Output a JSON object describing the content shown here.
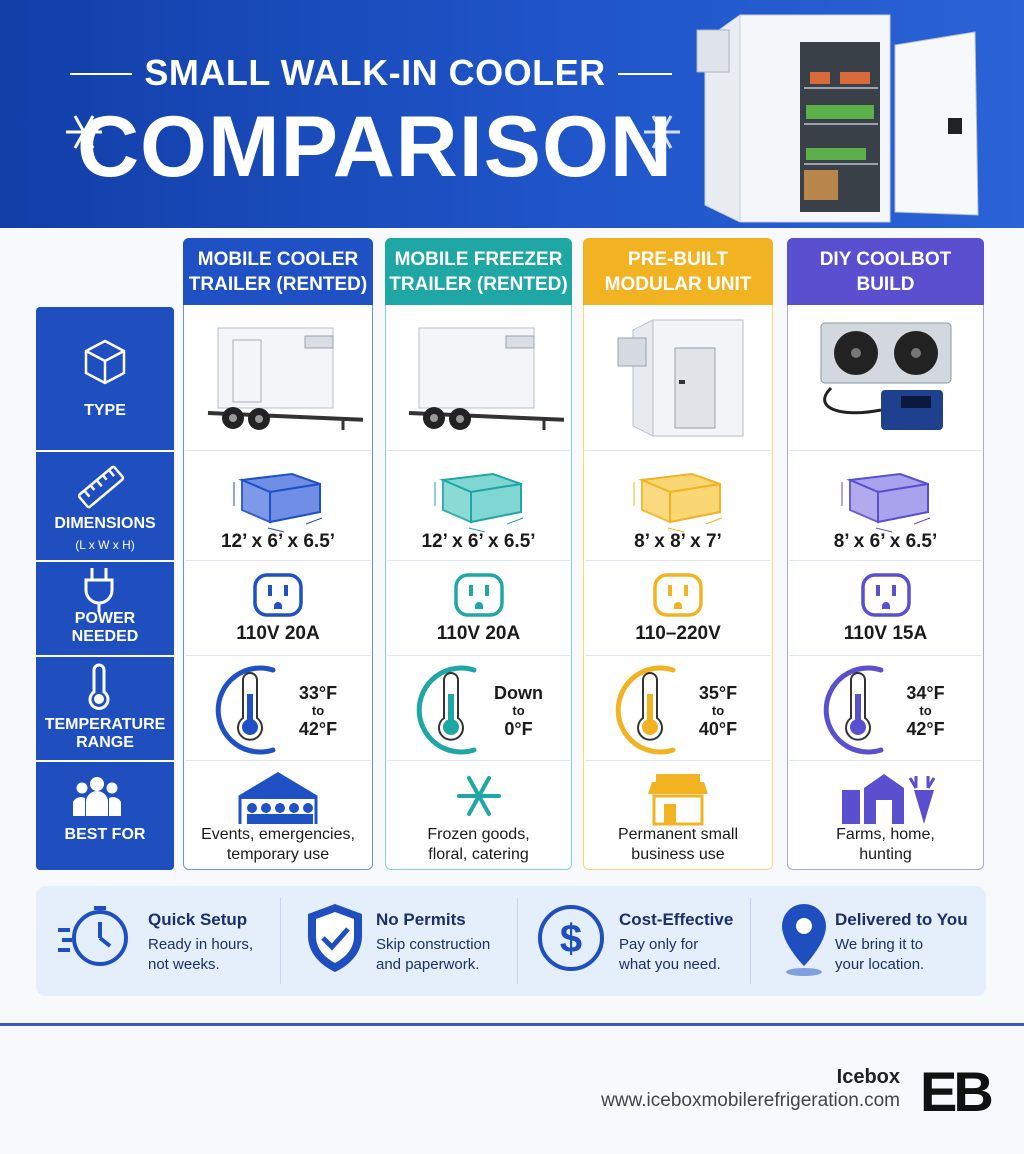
{
  "header": {
    "title_top": "SMALL WALK-IN COOLER",
    "title_main": "COMPARISON"
  },
  "row_labels": {
    "type": "TYPE",
    "dimensions": "DIMENSIONS",
    "dimensions_note": "(L x W x H)",
    "power": [
      "POWER",
      "NEEDED"
    ],
    "temperature": [
      "TEMPERATURE",
      "RANGE"
    ],
    "best_for": "BEST FOR"
  },
  "options": [
    {
      "name": [
        "MOBILE COOLER",
        "TRAILER (RENTED)"
      ],
      "dimensions": "12’ x 6’ x 6.5’",
      "power": "110V 20A",
      "temperature": [
        "33°F",
        "to",
        "42°F"
      ],
      "best_for": [
        "Events, emergencies,",
        "temporary use"
      ]
    },
    {
      "name": [
        "MOBILE FREEZER",
        "TRAILER (RENTED)"
      ],
      "dimensions": "12’ x 6’ x 6.5’",
      "power": "110V 20A",
      "temperature": [
        "Down",
        "to",
        "0°F"
      ],
      "best_for": [
        "Frozen goods,",
        "floral, catering"
      ]
    },
    {
      "name": [
        "PRE-BUILT",
        "MODULAR UNIT"
      ],
      "dimensions": "8’ x 8’ x 7’",
      "power": "110–220V",
      "temperature": [
        "35°F",
        "to",
        "40°F"
      ],
      "best_for": [
        "Permanent small",
        "business use"
      ]
    },
    {
      "name": [
        "DIY COOLBOT",
        "BUILD"
      ],
      "dimensions": "8’ x 6’ x 6.5’",
      "power": "110V 15A",
      "temperature": [
        "34°F",
        "to",
        "42°F"
      ],
      "best_for": [
        "Farms, home,",
        "hunting"
      ]
    }
  ],
  "benefits": [
    {
      "title": "Quick Setup",
      "text": [
        "Ready in hours,",
        "not weeks."
      ]
    },
    {
      "title": "No Permits",
      "text": [
        "Skip construction",
        "and paperwork."
      ]
    },
    {
      "title": "Cost-Effective",
      "text": [
        "Pay only for",
        "what you need."
      ]
    },
    {
      "title": "Delivered to You",
      "text": [
        "We bring it to",
        "your location."
      ]
    }
  ],
  "footer": {
    "brand": "Icebox",
    "url": "www.iceboxmobilerefrigeration.com",
    "logo": "EB"
  }
}
